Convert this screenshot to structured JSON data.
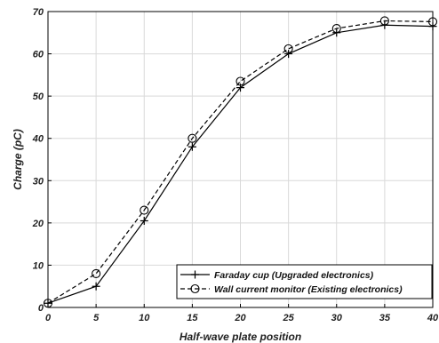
{
  "chart_data": {
    "type": "line",
    "xlabel": "Half-wave plate position",
    "ylabel": "Charge (pC)",
    "xlim": [
      0,
      40
    ],
    "ylim": [
      0,
      70
    ],
    "xticks": [
      "0",
      "5",
      "10",
      "15",
      "20",
      "25",
      "30",
      "35",
      "40"
    ],
    "yticks": [
      "0",
      "10",
      "20",
      "30",
      "40",
      "50",
      "60",
      "70"
    ],
    "grid": true,
    "legend_position": "bottom-right",
    "series": [
      {
        "name": "Faraday cup (Upgraded electronics)",
        "line_style": "solid",
        "marker": "plus",
        "color": "#000000",
        "x": [
          0,
          5,
          10,
          15,
          20,
          25,
          30,
          35,
          40
        ],
        "y": [
          1,
          5,
          20.5,
          38,
          52,
          60,
          65,
          66.8,
          66.5
        ]
      },
      {
        "name": "Wall current monitor (Existing electronics)",
        "line_style": "dashed",
        "marker": "circle",
        "color": "#000000",
        "x": [
          0,
          5,
          10,
          15,
          20,
          25,
          30,
          35,
          40
        ],
        "y": [
          1,
          8,
          23,
          40,
          53.5,
          61.2,
          66,
          67.8,
          67.6
        ]
      }
    ]
  }
}
